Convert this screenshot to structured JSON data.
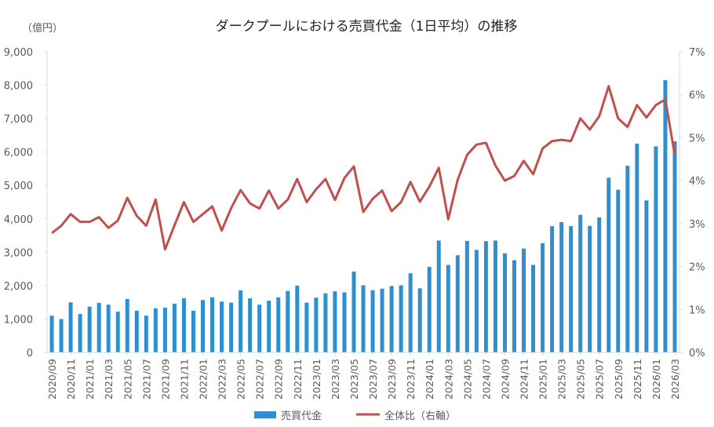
{
  "chart_data": {
    "type": "bar+line",
    "title": "ダークプールにおける売買代金（1日平均）の推移",
    "ylabel": "（億円）",
    "ylim": [
      0,
      9000
    ],
    "yticks": [
      "0",
      "1,000",
      "2,000",
      "3,000",
      "4,000",
      "5,000",
      "6,000",
      "7,000",
      "8,000",
      "9,000"
    ],
    "y2lim": [
      0,
      7
    ],
    "y2ticks": [
      "0%",
      "1%",
      "2%",
      "3%",
      "4%",
      "5%",
      "6%",
      "7%"
    ],
    "legend_position": "bottom",
    "categories": [
      "2020/09",
      "2020/10",
      "2020/11",
      "2020/12",
      "2021/01",
      "2021/02",
      "2021/03",
      "2021/04",
      "2021/05",
      "2021/06",
      "2021/07",
      "2021/08",
      "2021/09",
      "2021/10",
      "2021/11",
      "2021/12",
      "2022/01",
      "2022/02",
      "2022/03",
      "2022/04",
      "2022/05",
      "2022/06",
      "2022/07",
      "2022/08",
      "2022/09",
      "2022/10",
      "2022/11",
      "2022/12",
      "2023/01",
      "2023/02",
      "2023/03",
      "2023/04",
      "2023/05",
      "2023/06",
      "2023/07",
      "2023/08",
      "2023/09",
      "2023/10",
      "2023/11",
      "2023/12",
      "2024/01",
      "2024/02",
      "2024/03",
      "2024/04",
      "2024/05",
      "2024/06",
      "2024/07",
      "2024/08",
      "2024/09",
      "2024/10",
      "2024/11",
      "2024/12",
      "2025/01",
      "2025/02",
      "2025/03",
      "2025/04",
      "2025/05",
      "2025/06",
      "2025/07",
      "2025/08",
      "2025/09",
      "2025/10",
      "2025/11",
      "2025/12",
      "2026/01",
      "2026/02",
      "2026/03"
    ],
    "series": [
      {
        "name": "売買代金",
        "axis": "left",
        "kind": "bar",
        "color": "#2e8fd0",
        "values": [
          1100,
          1000,
          1500,
          1150,
          1370,
          1480,
          1430,
          1220,
          1600,
          1250,
          1100,
          1320,
          1340,
          1460,
          1620,
          1250,
          1570,
          1650,
          1520,
          1490,
          1860,
          1620,
          1430,
          1550,
          1650,
          1840,
          2000,
          1490,
          1640,
          1770,
          1830,
          1800,
          2420,
          2010,
          1860,
          1910,
          1990,
          2010,
          2370,
          1920,
          2560,
          3350,
          2620,
          2910,
          3340,
          3070,
          3330,
          3350,
          2970,
          2760,
          3110,
          2620,
          3270,
          3780,
          3900,
          3780,
          4120,
          3790,
          4040,
          5230,
          4870,
          5590,
          6250,
          4550,
          6170,
          8150,
          6320
        ]
      },
      {
        "name": "全体比（右軸）",
        "axis": "right",
        "kind": "line",
        "color": "#c0504d",
        "values": [
          2.78,
          2.95,
          3.22,
          3.04,
          3.04,
          3.15,
          2.9,
          3.07,
          3.6,
          3.18,
          2.95,
          3.56,
          2.4,
          2.96,
          3.5,
          3.04,
          3.22,
          3.4,
          2.84,
          3.36,
          3.78,
          3.47,
          3.35,
          3.77,
          3.35,
          3.56,
          4.04,
          3.5,
          3.8,
          4.04,
          3.55,
          4.06,
          4.33,
          3.27,
          3.58,
          3.77,
          3.29,
          3.5,
          3.97,
          3.51,
          3.86,
          4.3,
          3.1,
          4.02,
          4.6,
          4.84,
          4.88,
          4.35,
          4.0,
          4.11,
          4.46,
          4.15,
          4.75,
          4.92,
          4.95,
          4.92,
          5.45,
          5.19,
          5.5,
          6.2,
          5.45,
          5.25,
          5.76,
          5.47,
          5.76,
          5.89,
          4.6
        ]
      }
    ]
  }
}
